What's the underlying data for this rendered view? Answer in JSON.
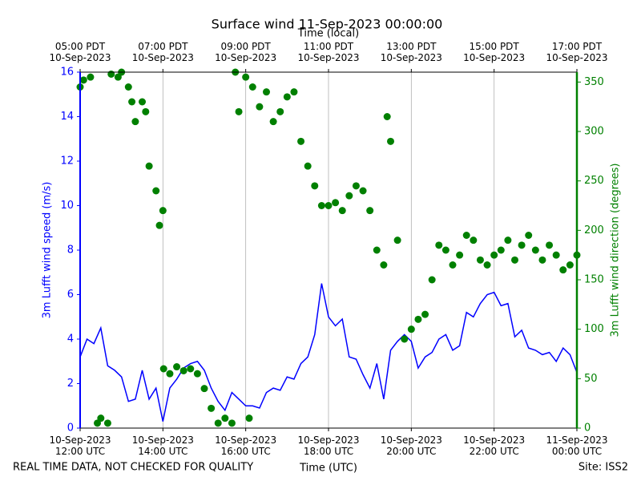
{
  "chart_data": {
    "type": "line",
    "title": "Surface wind 11-Sep-2023 00:00:00",
    "x_label": "Time (UTC)",
    "x2_label": "Time (local)",
    "y_label": "3m Lufft wind speed (m/s)",
    "y2_label": "3m Lufft wind direction (degrees)",
    "note": "REAL TIME DATA, NOT CHECKED FOR QUALITY",
    "site": "Site: ISS2",
    "grid": true,
    "xlim": [
      "2023-09-10T12:00",
      "2023-09-11T00:00"
    ],
    "xticks": [
      {
        "value": "2023-09-10T12:00",
        "label": "10-Sep-2023\n12:00 UTC"
      },
      {
        "value": "2023-09-10T14:00",
        "label": "10-Sep-2023\n14:00 UTC"
      },
      {
        "value": "2023-09-10T16:00",
        "label": "10-Sep-2023\n16:00 UTC"
      },
      {
        "value": "2023-09-10T18:00",
        "label": "10-Sep-2023\n18:00 UTC"
      },
      {
        "value": "2023-09-10T20:00",
        "label": "10-Sep-2023\n20:00 UTC"
      },
      {
        "value": "2023-09-10T22:00",
        "label": "10-Sep-2023\n22:00 UTC"
      },
      {
        "value": "2023-09-11T00:00",
        "label": "11-Sep-2023\n00:00 UTC"
      }
    ],
    "x2ticks": [
      {
        "value": "2023-09-10T12:00",
        "label": "05:00 PDT\n10-Sep-2023"
      },
      {
        "value": "2023-09-10T14:00",
        "label": "07:00 PDT\n10-Sep-2023"
      },
      {
        "value": "2023-09-10T16:00",
        "label": "09:00 PDT\n10-Sep-2023"
      },
      {
        "value": "2023-09-10T18:00",
        "label": "11:00 PDT\n10-Sep-2023"
      },
      {
        "value": "2023-09-10T20:00",
        "label": "13:00 PDT\n10-Sep-2023"
      },
      {
        "value": "2023-09-10T22:00",
        "label": "15:00 PDT\n10-Sep-2023"
      },
      {
        "value": "2023-09-11T00:00",
        "label": "17:00 PDT\n10-Sep-2023"
      }
    ],
    "ylim": [
      0,
      16
    ],
    "yticks": [
      0,
      2,
      4,
      6,
      8,
      10,
      12,
      14,
      16
    ],
    "y2lim": [
      0,
      360
    ],
    "y2ticks": [
      0,
      50,
      100,
      150,
      200,
      250,
      300,
      350
    ],
    "series": [
      {
        "type": "line",
        "color": "#0000ff",
        "x": [
          "2023-09-10T12:00",
          "2023-09-10T12:10",
          "2023-09-10T12:20",
          "2023-09-10T12:30",
          "2023-09-10T12:40",
          "2023-09-10T12:50",
          "2023-09-10T13:00",
          "2023-09-10T13:10",
          "2023-09-10T13:20",
          "2023-09-10T13:30",
          "2023-09-10T13:40",
          "2023-09-10T13:50",
          "2023-09-10T14:00",
          "2023-09-10T14:10",
          "2023-09-10T14:20",
          "2023-09-10T14:30",
          "2023-09-10T14:40",
          "2023-09-10T14:50",
          "2023-09-10T15:00",
          "2023-09-10T15:10",
          "2023-09-10T15:20",
          "2023-09-10T15:30",
          "2023-09-10T15:40",
          "2023-09-10T15:50",
          "2023-09-10T16:00",
          "2023-09-10T16:10",
          "2023-09-10T16:20",
          "2023-09-10T16:30",
          "2023-09-10T16:40",
          "2023-09-10T16:50",
          "2023-09-10T17:00",
          "2023-09-10T17:10",
          "2023-09-10T17:20",
          "2023-09-10T17:30",
          "2023-09-10T17:40",
          "2023-09-10T17:50",
          "2023-09-10T18:00",
          "2023-09-10T18:10",
          "2023-09-10T18:20",
          "2023-09-10T18:30",
          "2023-09-10T18:40",
          "2023-09-10T18:50",
          "2023-09-10T19:00",
          "2023-09-10T19:10",
          "2023-09-10T19:20",
          "2023-09-10T19:30",
          "2023-09-10T19:40",
          "2023-09-10T19:50",
          "2023-09-10T20:00",
          "2023-09-10T20:10",
          "2023-09-10T20:20",
          "2023-09-10T20:30",
          "2023-09-10T20:40",
          "2023-09-10T20:50",
          "2023-09-10T21:00",
          "2023-09-10T21:10",
          "2023-09-10T21:20",
          "2023-09-10T21:30",
          "2023-09-10T21:40",
          "2023-09-10T21:50",
          "2023-09-10T22:00",
          "2023-09-10T22:10",
          "2023-09-10T22:20",
          "2023-09-10T22:30",
          "2023-09-10T22:40",
          "2023-09-10T22:50",
          "2023-09-10T23:00",
          "2023-09-10T23:10",
          "2023-09-10T23:20",
          "2023-09-10T23:30",
          "2023-09-10T23:40",
          "2023-09-10T23:50",
          "2023-09-11T00:00"
        ],
        "values": [
          3.2,
          4.0,
          3.8,
          4.5,
          2.8,
          2.6,
          2.3,
          1.2,
          1.3,
          2.6,
          1.3,
          1.8,
          0.3,
          1.8,
          2.2,
          2.7,
          2.9,
          3.0,
          2.6,
          1.8,
          1.2,
          0.8,
          1.6,
          1.3,
          1.0,
          1.0,
          0.9,
          1.6,
          1.8,
          1.7,
          2.3,
          2.2,
          2.9,
          3.2,
          4.2,
          6.5,
          5.0,
          4.6,
          4.9,
          3.2,
          3.1,
          2.4,
          1.8,
          2.9,
          1.3,
          3.5,
          3.9,
          4.2,
          3.9,
          2.7,
          3.2,
          3.4,
          4.0,
          4.2,
          3.5,
          3.7,
          5.2,
          5.0,
          5.6,
          6.0,
          6.1,
          5.5,
          5.6,
          4.1,
          4.4,
          3.6,
          3.5,
          3.3,
          3.4,
          3.0,
          3.6,
          3.3,
          2.5
        ]
      },
      {
        "type": "scatter",
        "color": "#008000",
        "axis": "y2",
        "x": [
          "2023-09-10T12:00",
          "2023-09-10T12:05",
          "2023-09-10T12:15",
          "2023-09-10T12:25",
          "2023-09-10T12:30",
          "2023-09-10T12:40",
          "2023-09-10T12:45",
          "2023-09-10T12:55",
          "2023-09-10T13:00",
          "2023-09-10T13:10",
          "2023-09-10T13:15",
          "2023-09-10T13:20",
          "2023-09-10T13:30",
          "2023-09-10T13:35",
          "2023-09-10T13:40",
          "2023-09-10T13:50",
          "2023-09-10T13:55",
          "2023-09-10T14:00",
          "2023-09-10T14:01",
          "2023-09-10T14:10",
          "2023-09-10T14:20",
          "2023-09-10T14:30",
          "2023-09-10T14:40",
          "2023-09-10T14:50",
          "2023-09-10T15:00",
          "2023-09-10T15:10",
          "2023-09-10T15:20",
          "2023-09-10T15:30",
          "2023-09-10T15:40",
          "2023-09-10T15:45",
          "2023-09-10T15:50",
          "2023-09-10T16:00",
          "2023-09-10T16:05",
          "2023-09-10T16:10",
          "2023-09-10T16:20",
          "2023-09-10T16:30",
          "2023-09-10T16:40",
          "2023-09-10T16:50",
          "2023-09-10T17:00",
          "2023-09-10T17:10",
          "2023-09-10T17:20",
          "2023-09-10T17:30",
          "2023-09-10T17:40",
          "2023-09-10T17:50",
          "2023-09-10T18:00",
          "2023-09-10T18:10",
          "2023-09-10T18:20",
          "2023-09-10T18:30",
          "2023-09-10T18:40",
          "2023-09-10T18:50",
          "2023-09-10T19:00",
          "2023-09-10T19:10",
          "2023-09-10T19:20",
          "2023-09-10T19:25",
          "2023-09-10T19:30",
          "2023-09-10T19:40",
          "2023-09-10T19:50",
          "2023-09-10T20:00",
          "2023-09-10T20:10",
          "2023-09-10T20:20",
          "2023-09-10T20:30",
          "2023-09-10T20:40",
          "2023-09-10T20:50",
          "2023-09-10T21:00",
          "2023-09-10T21:10",
          "2023-09-10T21:20",
          "2023-09-10T21:30",
          "2023-09-10T21:40",
          "2023-09-10T21:50",
          "2023-09-10T22:00",
          "2023-09-10T22:10",
          "2023-09-10T22:20",
          "2023-09-10T22:30",
          "2023-09-10T22:40",
          "2023-09-10T22:50",
          "2023-09-10T23:00",
          "2023-09-10T23:10",
          "2023-09-10T23:20",
          "2023-09-10T23:30",
          "2023-09-10T23:40",
          "2023-09-10T23:50",
          "2023-09-11T00:00"
        ],
        "values": [
          345,
          352,
          355,
          5,
          10,
          5,
          358,
          355,
          360,
          345,
          330,
          310,
          330,
          320,
          265,
          240,
          205,
          220,
          60,
          55,
          62,
          58,
          60,
          55,
          40,
          20,
          5,
          10,
          5,
          360,
          320,
          355,
          10,
          345,
          325,
          340,
          310,
          320,
          335,
          340,
          290,
          265,
          245,
          225,
          225,
          228,
          220,
          235,
          245,
          240,
          220,
          180,
          165,
          315,
          290,
          190,
          90,
          100,
          110,
          115,
          150,
          185,
          180,
          165,
          175,
          195,
          190,
          170,
          165,
          175,
          180,
          190,
          170,
          185,
          195,
          180,
          170,
          185,
          175,
          160,
          165,
          175
        ]
      }
    ]
  }
}
